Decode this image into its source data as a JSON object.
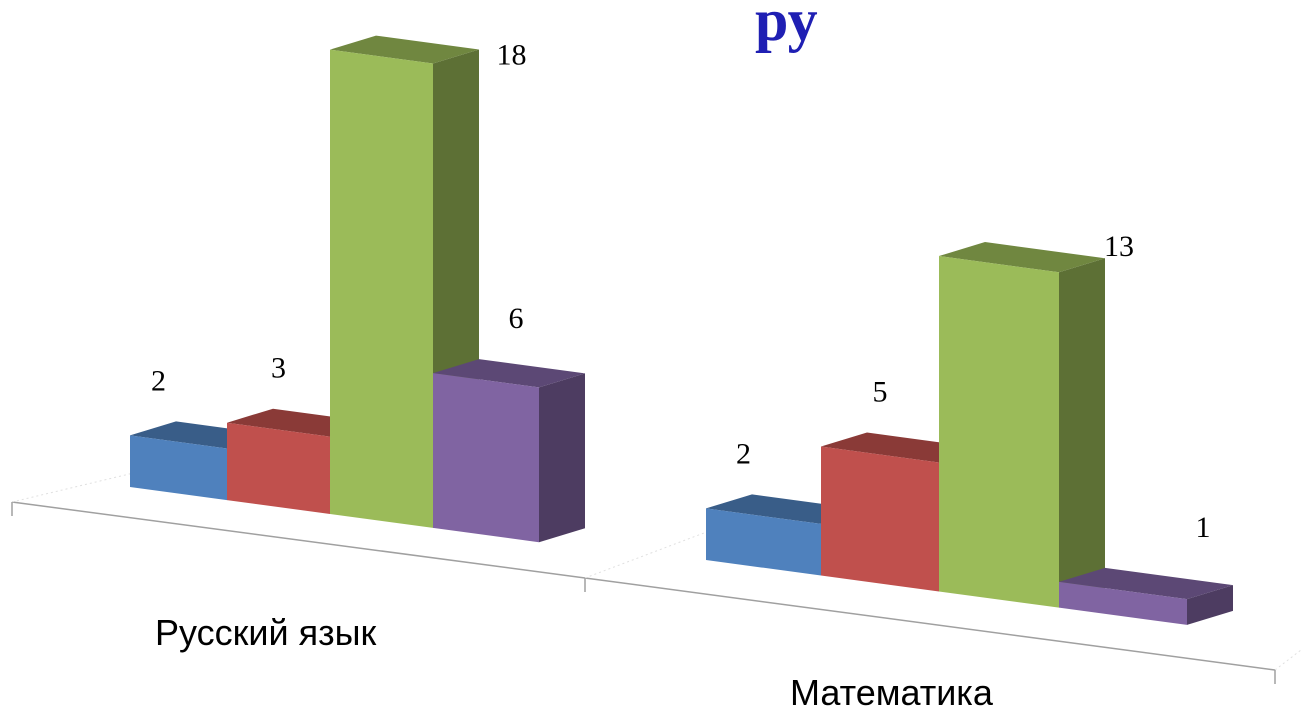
{
  "chart_data": {
    "type": "bar",
    "title_fragment": "ру",
    "categories": [
      "Русский язык",
      "Математика"
    ],
    "series": [
      {
        "values": [
          2,
          2
        ],
        "color": "#4f81bd"
      },
      {
        "values": [
          3,
          5
        ],
        "color": "#c0504d"
      },
      {
        "values": [
          18,
          13
        ],
        "color": "#9bbb59"
      },
      {
        "values": [
          6,
          1
        ],
        "color": "#8064a2"
      }
    ],
    "ylim": [
      0,
      18
    ],
    "grid": false,
    "legend": "none",
    "style": "3d-clustered-column"
  }
}
